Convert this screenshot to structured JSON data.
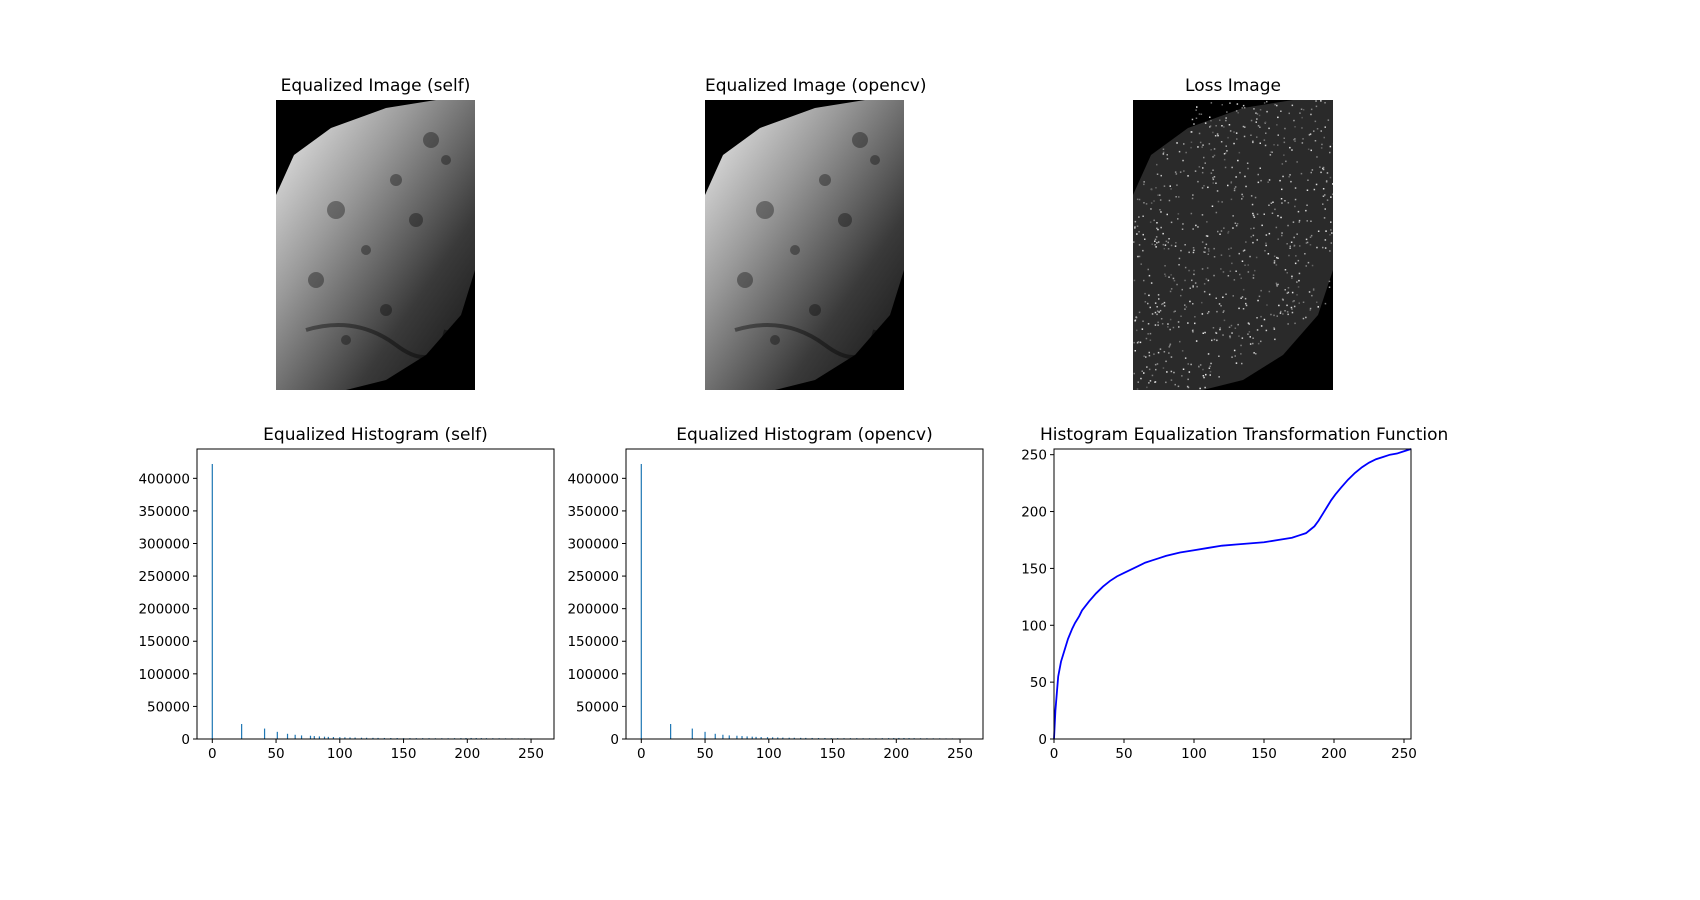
{
  "titles": {
    "img_self": "Equalized Image (self)",
    "img_opencv": "Equalized Image (opencv)",
    "img_loss": "Loss Image",
    "hist_self": "Equalized Histogram (self)",
    "hist_opencv": "Equalized Histogram (opencv)",
    "transform": "Histogram Equalization Transformation Function"
  },
  "images": [
    {
      "key": "img_self",
      "kind": "grayscale-moon-image"
    },
    {
      "key": "img_opencv",
      "kind": "grayscale-moon-image"
    },
    {
      "key": "img_loss",
      "kind": "difference-noise-image"
    }
  ],
  "chart_data": [
    {
      "type": "bar",
      "title": "Equalized Histogram (self)",
      "xlabel": "",
      "ylabel": "",
      "xlim": [
        -12,
        268
      ],
      "ylim": [
        0,
        445000
      ],
      "xticks": [
        0,
        50,
        100,
        150,
        200,
        250
      ],
      "yticks": [
        0,
        50000,
        100000,
        150000,
        200000,
        250000,
        300000,
        350000,
        400000
      ],
      "color": "#1f77b4",
      "bins": [
        [
          0,
          422000
        ],
        [
          23,
          23000
        ],
        [
          41,
          16000
        ],
        [
          51,
          11000
        ],
        [
          59,
          8000
        ],
        [
          65,
          6500
        ],
        [
          70,
          5500
        ],
        [
          77,
          5000
        ],
        [
          80,
          4500
        ],
        [
          84,
          4000
        ],
        [
          88,
          3600
        ],
        [
          91,
          3300
        ],
        [
          95,
          3000
        ],
        [
          100,
          2800
        ],
        [
          104,
          2600
        ],
        [
          108,
          2400
        ],
        [
          112,
          2200
        ],
        [
          117,
          2000
        ],
        [
          121,
          1900
        ],
        [
          126,
          1800
        ],
        [
          130,
          1700
        ],
        [
          135,
          1600
        ],
        [
          140,
          1500
        ],
        [
          145,
          1500
        ],
        [
          150,
          1400
        ],
        [
          155,
          1400
        ],
        [
          160,
          1300
        ],
        [
          165,
          1300
        ],
        [
          170,
          1300
        ],
        [
          175,
          1200
        ],
        [
          180,
          1200
        ],
        [
          185,
          1200
        ],
        [
          190,
          1300
        ],
        [
          195,
          1400
        ],
        [
          199,
          1500
        ],
        [
          203,
          1600
        ],
        [
          207,
          1500
        ],
        [
          211,
          1400
        ],
        [
          215,
          1300
        ],
        [
          220,
          1200
        ],
        [
          225,
          1200
        ],
        [
          230,
          1100
        ],
        [
          235,
          1100
        ],
        [
          240,
          1000
        ],
        [
          245,
          1000
        ],
        [
          250,
          900
        ],
        [
          255,
          800
        ]
      ]
    },
    {
      "type": "bar",
      "title": "Equalized Histogram (opencv)",
      "xlabel": "",
      "ylabel": "",
      "xlim": [
        -12,
        268
      ],
      "ylim": [
        0,
        445000
      ],
      "xticks": [
        0,
        50,
        100,
        150,
        200,
        250
      ],
      "yticks": [
        0,
        50000,
        100000,
        150000,
        200000,
        250000,
        300000,
        350000,
        400000
      ],
      "color": "#1f77b4",
      "bins": [
        [
          0,
          422000
        ],
        [
          23,
          23000
        ],
        [
          40,
          16000
        ],
        [
          50,
          11000
        ],
        [
          58,
          8000
        ],
        [
          64,
          6500
        ],
        [
          69,
          5500
        ],
        [
          75,
          5000
        ],
        [
          79,
          4500
        ],
        [
          83,
          4000
        ],
        [
          87,
          3600
        ],
        [
          90,
          3300
        ],
        [
          94,
          3000
        ],
        [
          99,
          2800
        ],
        [
          103,
          2600
        ],
        [
          107,
          2400
        ],
        [
          111,
          2200
        ],
        [
          116,
          2000
        ],
        [
          120,
          1900
        ],
        [
          125,
          1800
        ],
        [
          129,
          1700
        ],
        [
          134,
          1600
        ],
        [
          139,
          1500
        ],
        [
          144,
          1500
        ],
        [
          149,
          1400
        ],
        [
          154,
          1400
        ],
        [
          159,
          1300
        ],
        [
          164,
          1300
        ],
        [
          169,
          1300
        ],
        [
          174,
          1200
        ],
        [
          179,
          1200
        ],
        [
          184,
          1200
        ],
        [
          189,
          1300
        ],
        [
          194,
          1400
        ],
        [
          198,
          1500
        ],
        [
          202,
          1600
        ],
        [
          206,
          1500
        ],
        [
          210,
          1400
        ],
        [
          214,
          1300
        ],
        [
          219,
          1200
        ],
        [
          224,
          1200
        ],
        [
          229,
          1100
        ],
        [
          234,
          1100
        ],
        [
          239,
          1000
        ],
        [
          244,
          1000
        ],
        [
          249,
          900
        ],
        [
          254,
          800
        ]
      ]
    },
    {
      "type": "line",
      "title": "Histogram Equalization Transformation Function",
      "xlabel": "",
      "ylabel": "",
      "xlim": [
        0,
        255
      ],
      "ylim": [
        0,
        255
      ],
      "xticks": [
        0,
        50,
        100,
        150,
        200,
        250
      ],
      "yticks": [
        0,
        50,
        100,
        150,
        200,
        250
      ],
      "color": "#0000ff",
      "x": [
        0,
        1,
        2,
        3,
        5,
        8,
        10,
        13,
        15,
        18,
        20,
        25,
        30,
        35,
        40,
        45,
        50,
        55,
        60,
        65,
        70,
        75,
        80,
        90,
        100,
        110,
        120,
        130,
        140,
        150,
        160,
        170,
        175,
        180,
        183,
        186,
        189,
        192,
        195,
        198,
        201,
        205,
        210,
        215,
        220,
        225,
        230,
        235,
        240,
        245,
        250,
        255
      ],
      "y": [
        0,
        25,
        40,
        55,
        68,
        80,
        88,
        97,
        102,
        108,
        113,
        121,
        128,
        134,
        139,
        143,
        146,
        149,
        152,
        155,
        157,
        159,
        161,
        164,
        166,
        168,
        170,
        171,
        172,
        173,
        175,
        177,
        179,
        181,
        184,
        187,
        192,
        198,
        204,
        210,
        215,
        221,
        228,
        234,
        239,
        243,
        246,
        248,
        250,
        251,
        253,
        255
      ]
    }
  ]
}
